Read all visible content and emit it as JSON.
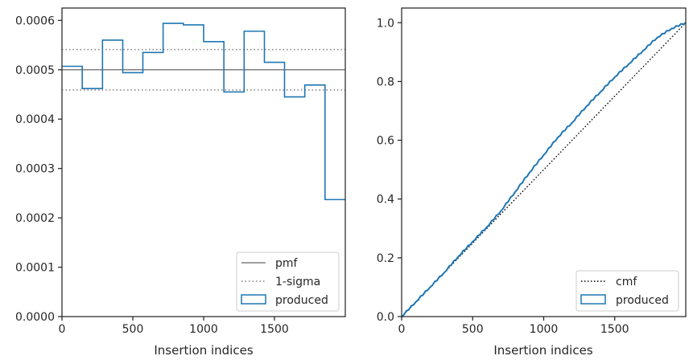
{
  "chart_data": [
    {
      "type": "histogram-step",
      "xlabel": "Insertion indices",
      "xlim": [
        0,
        2000
      ],
      "ylim": [
        0,
        0.000625
      ],
      "x_ticks": [
        0,
        500,
        1000,
        1500
      ],
      "x_tick_labels": [
        "0",
        "500",
        "1000",
        "1500"
      ],
      "y_ticks": [
        0,
        0.0001,
        0.0002,
        0.0003,
        0.0004,
        0.0005,
        0.0006
      ],
      "y_tick_labels": [
        "0.0000",
        "0.0001",
        "0.0002",
        "0.0003",
        "0.0004",
        "0.0005",
        "0.0006"
      ],
      "pmf": 0.0005,
      "sigma_band": [
        0.000459,
        0.000541
      ],
      "produced": {
        "bin_edges": [
          0,
          143,
          286,
          429,
          571,
          714,
          857,
          1000,
          1143,
          1286,
          1429,
          1571,
          1714,
          1857,
          2000
        ],
        "values": [
          0.000507,
          0.000462,
          0.00056,
          0.000494,
          0.000535,
          0.000594,
          0.000591,
          0.000557,
          0.000455,
          0.000578,
          0.000515,
          0.000445,
          0.000469,
          0.000237
        ]
      },
      "legend": {
        "position": "lower-right",
        "entries": [
          {
            "label": "pmf",
            "style": "solid-gray"
          },
          {
            "label": "1-sigma",
            "style": "dotted-gray"
          },
          {
            "label": "produced",
            "style": "patch-blue"
          }
        ]
      },
      "colors": {
        "produced": "#1f77b4",
        "reference": "#808080"
      }
    },
    {
      "type": "line",
      "xlabel": "Insertion indices",
      "xlim": [
        0,
        2000
      ],
      "ylim": [
        0,
        1.05
      ],
      "x_ticks": [
        0,
        500,
        1000,
        1500
      ],
      "x_tick_labels": [
        "0",
        "500",
        "1000",
        "1500"
      ],
      "y_ticks": [
        0,
        0.2,
        0.4,
        0.6,
        0.8,
        1.0
      ],
      "y_tick_labels": [
        "0.0",
        "0.2",
        "0.4",
        "0.6",
        "0.8",
        "1.0"
      ],
      "cmf": {
        "x": [
          0,
          2000
        ],
        "y": [
          0,
          1.0
        ]
      },
      "produced": {
        "x": [
          0,
          100,
          200,
          300,
          400,
          500,
          600,
          700,
          800,
          900,
          1000,
          1100,
          1200,
          1300,
          1400,
          1500,
          1600,
          1700,
          1800,
          1900,
          2000
        ],
        "y": [
          0,
          0.05,
          0.1,
          0.15,
          0.205,
          0.255,
          0.305,
          0.36,
          0.425,
          0.49,
          0.55,
          0.61,
          0.66,
          0.715,
          0.765,
          0.815,
          0.86,
          0.905,
          0.95,
          0.98,
          1.0
        ]
      },
      "legend": {
        "position": "lower-right",
        "entries": [
          {
            "label": "cmf",
            "style": "dotted-black"
          },
          {
            "label": "produced",
            "style": "patch-blue"
          }
        ]
      },
      "colors": {
        "produced": "#1f77b4",
        "reference": "#000000"
      }
    }
  ]
}
